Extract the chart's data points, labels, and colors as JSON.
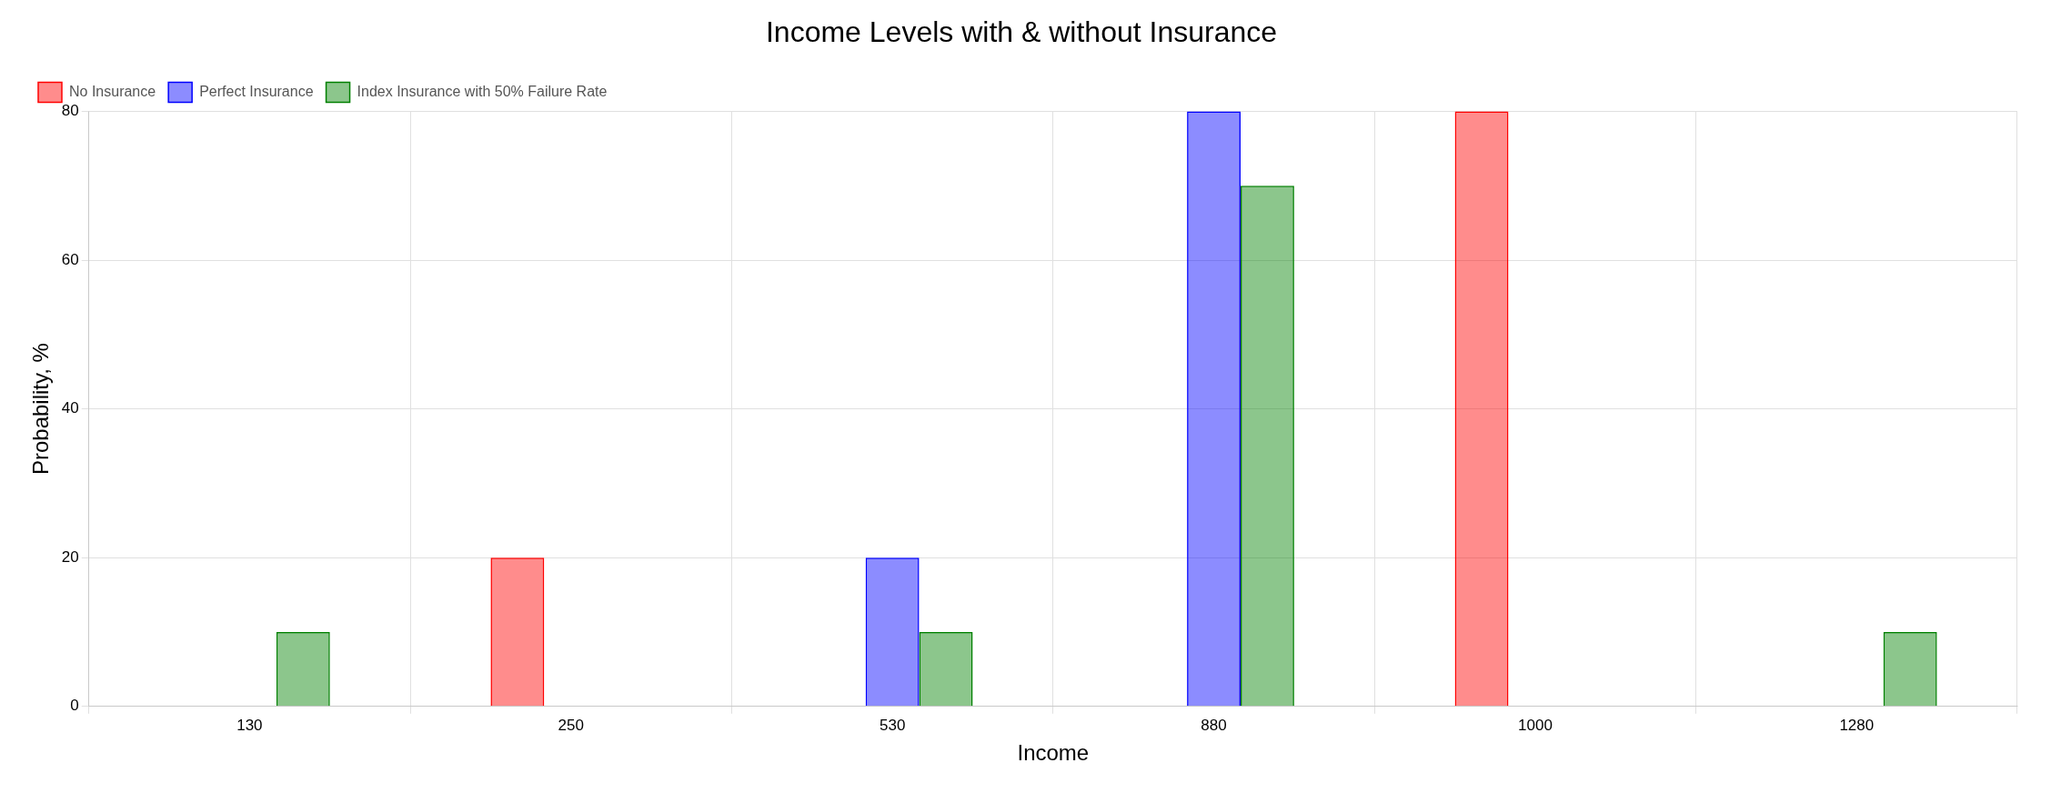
{
  "chart_data": {
    "type": "bar",
    "title": "Income Levels with & without Insurance",
    "xlabel": "Income",
    "ylabel": "Probability, %",
    "categories": [
      "130",
      "250",
      "530",
      "880",
      "1000",
      "1280"
    ],
    "series": [
      {
        "name": "No Insurance",
        "color": "#ff0000",
        "values": [
          0,
          20,
          0,
          0,
          80,
          0
        ]
      },
      {
        "name": "Perfect Insurance",
        "color": "#0000ff",
        "values": [
          0,
          0,
          20,
          80,
          0,
          0
        ]
      },
      {
        "name": "Index Insurance with 50% Failure Rate",
        "color": "#008000",
        "values": [
          10,
          0,
          10,
          70,
          0,
          10
        ]
      }
    ],
    "ylim": [
      0,
      80
    ],
    "yticks": [
      0,
      20,
      40,
      60,
      80
    ],
    "grid": true,
    "legend": "top left"
  }
}
